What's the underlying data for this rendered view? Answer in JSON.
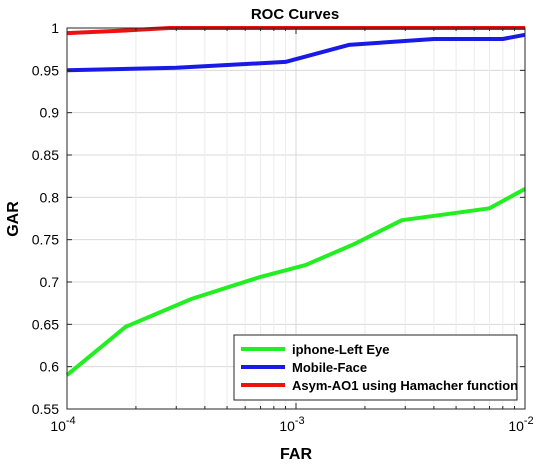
{
  "chart_data": {
    "type": "line",
    "title": "ROC Curves",
    "xlabel": "FAR",
    "ylabel": "GAR",
    "xscale": "log",
    "xlim": [
      0.0001,
      0.01
    ],
    "ylim": [
      0.55,
      1.0
    ],
    "grid": true,
    "legend_position": "bottom-right",
    "x_ticks": [
      {
        "value": 0.0001,
        "base": "10",
        "exp": "-4"
      },
      {
        "value": 0.001,
        "base": "10",
        "exp": "-3"
      },
      {
        "value": 0.01,
        "base": "10",
        "exp": "-2"
      }
    ],
    "y_ticks": [
      {
        "value": 0.55,
        "label": "0.55"
      },
      {
        "value": 0.6,
        "label": "0.6"
      },
      {
        "value": 0.65,
        "label": "0.65"
      },
      {
        "value": 0.7,
        "label": "0.7"
      },
      {
        "value": 0.75,
        "label": "0.75"
      },
      {
        "value": 0.8,
        "label": "0.8"
      },
      {
        "value": 0.85,
        "label": "0.85"
      },
      {
        "value": 0.9,
        "label": "0.9"
      },
      {
        "value": 0.95,
        "label": "0.95"
      },
      {
        "value": 1.0,
        "label": "1"
      }
    ],
    "series": [
      {
        "name": "iphone-Left Eye",
        "color": "#22ee22",
        "x": [
          0.0001,
          0.00018,
          0.00035,
          0.0007,
          0.0011,
          0.0018,
          0.0029,
          0.0045,
          0.007,
          0.01
        ],
        "y": [
          0.59,
          0.647,
          0.68,
          0.706,
          0.72,
          0.745,
          0.773,
          0.78,
          0.787,
          0.81
        ]
      },
      {
        "name": "Mobile-Face",
        "color": "#1a1ae6",
        "x": [
          0.0001,
          0.0003,
          0.0009,
          0.0017,
          0.004,
          0.008,
          0.01
        ],
        "y": [
          0.95,
          0.953,
          0.96,
          0.98,
          0.987,
          0.987,
          0.992
        ]
      },
      {
        "name": "Asym-AO1 using Hamacher function",
        "color": "#ee1111",
        "x": [
          0.0001,
          0.00018,
          0.00028,
          0.001,
          0.005,
          0.01
        ],
        "y": [
          0.994,
          0.997,
          1.0,
          1.0,
          1.0,
          1.0
        ]
      }
    ]
  }
}
